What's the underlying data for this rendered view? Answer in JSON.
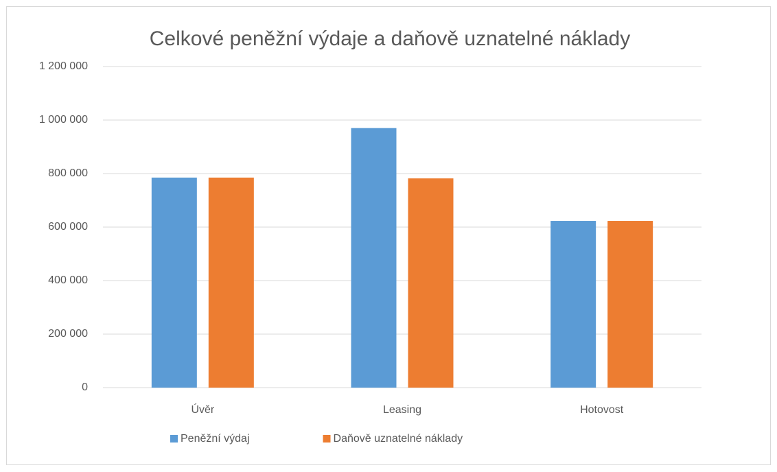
{
  "chart_data": {
    "type": "bar",
    "title": "Celkové peněžní výdaje a daňově uznatelné náklady",
    "categories": [
      "Úvěr",
      "Leasing",
      "Hotovost"
    ],
    "series": [
      {
        "name": "Peněžní výdaj",
        "color": "#5b9bd5",
        "values": [
          785000,
          970000,
          623000
        ]
      },
      {
        "name": "Daňově uznatelné náklady",
        "color": "#ed7d31",
        "values": [
          785000,
          782000,
          623000
        ]
      }
    ],
    "ylim": [
      0,
      1200000
    ],
    "yticks": [
      0,
      {
        "value": 200000,
        "label": "200 000"
      },
      {
        "value": 400000,
        "label": "400 000"
      },
      {
        "value": 600000,
        "label": "600 000"
      },
      {
        "value": 800000,
        "label": "800 000"
      },
      {
        "value": 1000000,
        "label": "1 000 000"
      },
      {
        "value": 1200000,
        "label": "1 200 000"
      }
    ],
    "grid": true,
    "legend": "bottom"
  }
}
